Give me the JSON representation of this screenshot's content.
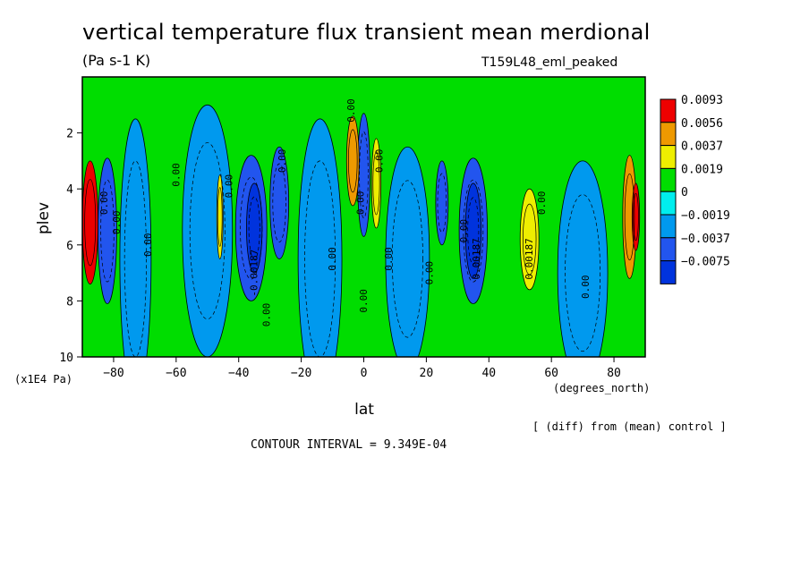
{
  "header": {
    "title": "vertical temperature flux transient mean merdional",
    "units": "(Pa s-1 K)",
    "run": "T159L48_eml_peaked"
  },
  "footer": {
    "diff_note": "[ (diff) from (mean) control ]",
    "contour_interval": "CONTOUR INTERVAL = 9.349E-04"
  },
  "chart_data": {
    "type": "heatmap",
    "xlabel": "lat",
    "x_units": "(degrees_north)",
    "ylabel": "plev",
    "y_units": "(x1E4 Pa)",
    "xlim": [
      -90,
      90
    ],
    "ylim": [
      10,
      0
    ],
    "x_ticks": [
      -80,
      -60,
      -40,
      -20,
      0,
      20,
      40,
      60,
      80
    ],
    "y_ticks": [
      2,
      4,
      6,
      8,
      10
    ],
    "legend": {
      "placement": "right",
      "levels": [
        "0.0093",
        "0.0056",
        "0.0037",
        "0.0019",
        "0",
        "-0.0019",
        "-0.0037",
        "-0.0075"
      ],
      "colors": [
        "#ee0000",
        "#ee9900",
        "#eeee00",
        "#00dd00",
        "#00eeee",
        "#0099ee",
        "#2255ee",
        "#0033dd"
      ]
    },
    "background_color": "#00dd00",
    "features": [
      {
        "lat": -87.5,
        "plev": 5.2,
        "dlat": 2.5,
        "dp": 2.2,
        "value": 0.0093
      },
      {
        "lat": -82,
        "plev": 5.5,
        "dlat": 3,
        "dp": 2.6,
        "value": -0.0037
      },
      {
        "lat": -73,
        "plev": 6.5,
        "dlat": 5,
        "dp": 5,
        "value": -0.0019
      },
      {
        "lat": -50,
        "plev": 5.5,
        "dlat": 8,
        "dp": 4.5,
        "value": -0.0019
      },
      {
        "lat": -46,
        "plev": 5.0,
        "dlat": 1,
        "dp": 1.5,
        "value": 0.0037
      },
      {
        "lat": -36,
        "plev": 5.4,
        "dlat": 5,
        "dp": 2.6,
        "value": -0.0037
      },
      {
        "lat": -35,
        "plev": 5.4,
        "dlat": 2.5,
        "dp": 1.6,
        "value": -0.0075
      },
      {
        "lat": -27,
        "plev": 4.5,
        "dlat": 3,
        "dp": 2,
        "value": -0.0037
      },
      {
        "lat": -14,
        "plev": 6.5,
        "dlat": 7,
        "dp": 5,
        "value": -0.0019
      },
      {
        "lat": -3.5,
        "plev": 3.0,
        "dlat": 2,
        "dp": 1.6,
        "value": 0.0056
      },
      {
        "lat": 0,
        "plev": 3.5,
        "dlat": 2,
        "dp": 2.2,
        "value": -0.0037
      },
      {
        "lat": 4,
        "plev": 3.8,
        "dlat": 1.5,
        "dp": 1.6,
        "value": 0.0037
      },
      {
        "lat": 14,
        "plev": 6.5,
        "dlat": 7,
        "dp": 4,
        "value": -0.0019
      },
      {
        "lat": 25,
        "plev": 4.5,
        "dlat": 2,
        "dp": 1.5,
        "value": -0.0037
      },
      {
        "lat": 35,
        "plev": 5.5,
        "dlat": 4.5,
        "dp": 2.6,
        "value": -0.0037
      },
      {
        "lat": 35,
        "plev": 5.5,
        "dlat": 2.5,
        "dp": 1.7,
        "value": -0.0075
      },
      {
        "lat": 53,
        "plev": 5.8,
        "dlat": 3,
        "dp": 1.8,
        "value": 0.0037
      },
      {
        "lat": 70,
        "plev": 7.0,
        "dlat": 8,
        "dp": 4,
        "value": -0.0019
      },
      {
        "lat": 85,
        "plev": 5.0,
        "dlat": 2.2,
        "dp": 2.2,
        "value": 0.0056
      },
      {
        "lat": 87,
        "plev": 5.0,
        "dlat": 1.2,
        "dp": 1.2,
        "value": 0.0093
      }
    ],
    "contour_labels": [
      {
        "text": "0.00",
        "lat": -82,
        "plev": 4.5,
        "rotate": -90
      },
      {
        "text": "0.00",
        "lat": -78,
        "plev": 5.2,
        "rotate": -90
      },
      {
        "text": "0.00",
        "lat": -68,
        "plev": 6.0,
        "rotate": -90
      },
      {
        "text": "0.00",
        "lat": -59,
        "plev": 3.5,
        "rotate": -90
      },
      {
        "text": "0.00",
        "lat": -42,
        "plev": 3.9,
        "rotate": -90
      },
      {
        "text": "-0.00187",
        "lat": -34,
        "plev": 7.0,
        "rotate": -90
      },
      {
        "text": "0.00",
        "lat": -25,
        "plev": 3.0,
        "rotate": -90
      },
      {
        "text": "0.00",
        "lat": -30,
        "plev": 8.5,
        "rotate": -90
      },
      {
        "text": "0.00",
        "lat": -9,
        "plev": 6.5,
        "rotate": -90
      },
      {
        "text": "0.00",
        "lat": -3,
        "plev": 1.2,
        "rotate": -90
      },
      {
        "text": "0.00",
        "lat": 0,
        "plev": 4.5,
        "rotate": -90
      },
      {
        "text": "0.00",
        "lat": 1,
        "plev": 8.0,
        "rotate": -90
      },
      {
        "text": "0.00",
        "lat": 6,
        "plev": 3.0,
        "rotate": -90
      },
      {
        "text": "0.00",
        "lat": 9,
        "plev": 6.5,
        "rotate": -90
      },
      {
        "text": "0.00",
        "lat": 22,
        "plev": 7.0,
        "rotate": -90
      },
      {
        "text": "0.00",
        "lat": 33,
        "plev": 5.5,
        "rotate": -90
      },
      {
        "text": "0.00187",
        "lat": 37,
        "plev": 6.5,
        "rotate": -90
      },
      {
        "text": "0.00187",
        "lat": 54,
        "plev": 6.5,
        "rotate": -90
      },
      {
        "text": "0.00",
        "lat": 58,
        "plev": 4.5,
        "rotate": -90
      },
      {
        "text": "0.00",
        "lat": 72,
        "plev": 7.5,
        "rotate": -90
      }
    ]
  }
}
